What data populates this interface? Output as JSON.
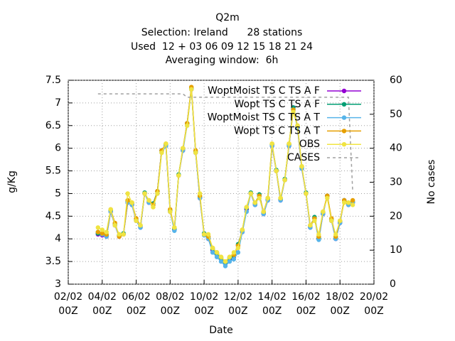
{
  "chart_data": {
    "type": "line",
    "title": "Q2m",
    "subtitle": [
      "Selection: Ireland      28 stations",
      "Used  12 + 03 06 09 12 15 18 21 24",
      "Averaging window:  6h"
    ],
    "xlabel": "Date",
    "ylabel": "g/Kg",
    "y2label": "No cases",
    "grid": true,
    "legend": "upper right",
    "xlim": [
      2,
      20
    ],
    "xticks": [
      {
        "value": 2,
        "label": [
          "02/02",
          "00Z"
        ]
      },
      {
        "value": 4,
        "label": [
          "04/02",
          "00Z"
        ]
      },
      {
        "value": 6,
        "label": [
          "06/02",
          "00Z"
        ]
      },
      {
        "value": 8,
        "label": [
          "08/02",
          "00Z"
        ]
      },
      {
        "value": 10,
        "label": [
          "10/02",
          "00Z"
        ]
      },
      {
        "value": 12,
        "label": [
          "12/02",
          "00Z"
        ]
      },
      {
        "value": 14,
        "label": [
          "14/02",
          "00Z"
        ]
      },
      {
        "value": 16,
        "label": [
          "16/02",
          "00Z"
        ]
      },
      {
        "value": 18,
        "label": [
          "18/02",
          "00Z"
        ]
      },
      {
        "value": 20,
        "label": [
          "20/02",
          "00Z"
        ]
      }
    ],
    "ylim": [
      3,
      7.5
    ],
    "yticks": [
      3,
      3.5,
      4,
      4.5,
      5,
      5.5,
      6,
      6.5,
      7,
      7.5
    ],
    "y2lim": [
      0,
      60
    ],
    "y2ticks": [
      0,
      10,
      20,
      30,
      40,
      50,
      60
    ],
    "x": [
      3.75,
      4,
      4.25,
      4.5,
      4.75,
      5,
      5.25,
      5.5,
      5.75,
      6,
      6.25,
      6.5,
      6.75,
      7,
      7.25,
      7.5,
      7.75,
      8,
      8.25,
      8.5,
      8.75,
      9,
      9.25,
      9.5,
      9.75,
      10,
      10.25,
      10.5,
      10.75,
      11,
      11.25,
      11.5,
      11.75,
      12,
      12.25,
      12.5,
      12.75,
      13,
      13.25,
      13.5,
      13.75,
      14,
      14.25,
      14.5,
      14.75,
      15,
      15.25,
      15.5,
      15.75,
      16,
      16.25,
      16.5,
      16.75,
      17,
      17.25,
      17.5,
      17.75,
      18,
      18.25,
      18.5,
      18.75
    ],
    "series": [
      {
        "name": "WoptMoist TS C TS A F",
        "color": "#9400d3",
        "marker": true,
        "values": [
          4.1,
          4.08,
          4.05,
          4.6,
          4.3,
          4.05,
          4.1,
          4.8,
          4.75,
          4.4,
          4.25,
          5.0,
          4.8,
          4.75,
          5.05,
          5.95,
          6.05,
          4.6,
          4.2,
          5.4,
          5.95,
          6.55,
          7.3,
          5.9,
          4.9,
          4.1,
          4.0,
          3.75,
          3.65,
          3.55,
          3.45,
          3.55,
          3.6,
          3.85,
          4.15,
          4.65,
          5.0,
          4.75,
          4.95,
          4.55,
          4.85,
          6.05,
          5.5,
          4.85,
          5.3,
          6.05,
          6.9,
          6.45,
          5.55,
          5.0,
          4.25,
          4.45,
          4.0,
          4.55,
          4.95,
          4.4,
          4.0,
          4.35,
          4.85,
          4.75,
          4.8
        ]
      },
      {
        "name": "Wopt TS C TS A F",
        "color": "#009e73",
        "marker": true,
        "values": [
          4.12,
          4.1,
          4.08,
          4.62,
          4.32,
          4.08,
          4.12,
          4.82,
          4.78,
          4.42,
          4.28,
          5.02,
          4.82,
          4.78,
          5.05,
          5.95,
          6.08,
          4.62,
          4.22,
          5.42,
          5.98,
          6.55,
          7.32,
          5.92,
          4.92,
          4.12,
          4.02,
          3.78,
          3.68,
          3.58,
          3.48,
          3.58,
          3.62,
          3.88,
          4.18,
          4.68,
          5.02,
          4.78,
          4.98,
          4.58,
          4.88,
          6.08,
          5.52,
          4.88,
          5.32,
          6.08,
          6.9,
          6.48,
          5.58,
          5.02,
          4.28,
          4.48,
          4.02,
          4.58,
          4.95,
          4.42,
          4.02,
          4.38,
          4.85,
          4.78,
          4.82
        ]
      },
      {
        "name": "WoptMoist TS C TS A T",
        "color": "#56b4e9",
        "marker": true,
        "values": [
          4.15,
          4.1,
          4.05,
          4.6,
          4.3,
          4.05,
          4.1,
          4.8,
          4.75,
          4.4,
          4.25,
          5.0,
          4.8,
          4.75,
          5.0,
          5.9,
          6.05,
          4.6,
          4.18,
          5.4,
          5.95,
          6.5,
          7.3,
          5.9,
          4.9,
          4.08,
          4.0,
          3.7,
          3.6,
          3.5,
          3.4,
          3.5,
          3.55,
          3.7,
          4.15,
          4.6,
          5.0,
          4.75,
          4.95,
          4.55,
          4.85,
          6.05,
          5.5,
          4.85,
          5.3,
          6.05,
          6.85,
          6.45,
          5.55,
          5.0,
          4.25,
          4.45,
          3.98,
          4.55,
          4.95,
          4.4,
          4.0,
          4.35,
          4.85,
          4.75,
          4.8
        ]
      },
      {
        "name": "Wopt TS C TS A T",
        "color": "#e69f00",
        "marker": true,
        "values": [
          4.15,
          4.12,
          4.1,
          4.65,
          4.35,
          4.05,
          4.1,
          4.85,
          4.8,
          4.45,
          4.3,
          5.0,
          4.85,
          4.75,
          5.05,
          5.95,
          6.1,
          4.65,
          4.25,
          5.4,
          6.0,
          6.55,
          7.35,
          5.95,
          4.95,
          4.1,
          4.05,
          3.8,
          3.7,
          3.6,
          3.5,
          3.6,
          3.65,
          3.85,
          4.2,
          4.7,
          5.0,
          4.8,
          4.95,
          4.6,
          4.9,
          6.1,
          5.5,
          4.9,
          5.3,
          6.1,
          6.85,
          6.5,
          5.6,
          5.0,
          4.3,
          4.45,
          4.05,
          4.6,
          4.95,
          4.45,
          4.05,
          4.4,
          4.85,
          4.8,
          4.85
        ]
      },
      {
        "name": "OBS",
        "color": "#f0e442",
        "marker": true,
        "values": [
          4.25,
          4.2,
          4.15,
          4.65,
          4.3,
          4.1,
          4.1,
          5.0,
          4.8,
          4.4,
          4.3,
          5.0,
          4.85,
          4.7,
          5.0,
          5.9,
          6.1,
          4.6,
          4.25,
          5.4,
          6.0,
          6.5,
          7.3,
          5.9,
          5.0,
          4.1,
          4.1,
          3.8,
          3.7,
          3.6,
          3.5,
          3.6,
          3.7,
          3.8,
          4.2,
          4.7,
          5.0,
          4.8,
          4.9,
          4.6,
          4.9,
          6.1,
          5.5,
          4.9,
          5.3,
          6.1,
          6.8,
          6.5,
          5.6,
          5.0,
          4.3,
          4.4,
          4.1,
          4.6,
          4.9,
          4.4,
          4.1,
          4.4,
          4.8,
          4.8,
          4.75
        ]
      },
      {
        "name": "CASES",
        "color": "#a0a0a0",
        "marker": false,
        "dashed": true,
        "axis": "y2",
        "values": [
          56,
          56,
          56,
          56,
          56,
          56,
          56,
          56,
          56,
          56,
          56,
          56,
          56,
          56,
          56,
          56,
          56,
          56,
          56,
          56,
          56,
          55,
          55,
          55,
          55,
          55,
          55,
          55,
          55,
          55,
          55,
          55,
          55,
          55,
          55,
          55,
          55,
          55,
          55,
          55,
          55,
          55,
          55,
          55,
          55,
          55,
          55,
          55,
          55,
          55,
          55,
          55,
          55,
          55,
          55,
          55,
          55,
          55,
          55,
          55,
          27
        ]
      }
    ]
  }
}
